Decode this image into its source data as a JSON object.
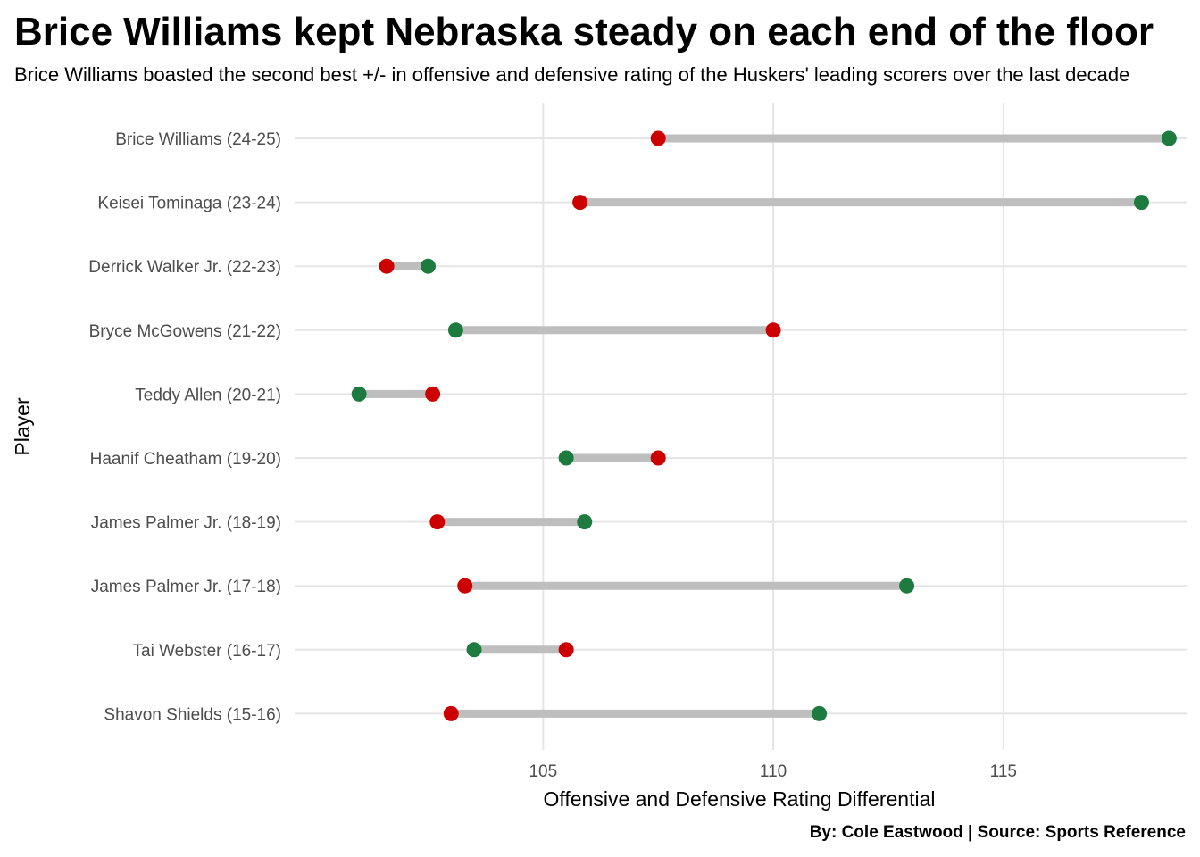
{
  "title": "Brice Williams kept Nebraska steady on each end of the floor",
  "subtitle": "Brice Williams boasted the second best +/- in offensive and defensive rating of the Huskers' leading scorers over the last decade",
  "caption": "By: Cole Eastwood | Source: Sports Reference",
  "chart_data": {
    "type": "dumbbell",
    "xlabel": "Offensive and Defensive Rating Differential",
    "ylabel": "Player",
    "xlim": [
      99.6,
      119.0
    ],
    "xticks": [
      105,
      110,
      115
    ],
    "grid": "on",
    "colors": {
      "offensive": "#1e7b3f",
      "defensive": "#cc0000",
      "connector": "#bebebe"
    },
    "series": [
      {
        "key": "offensive",
        "color": "#1e7b3f"
      },
      {
        "key": "defensive",
        "color": "#cc0000"
      }
    ],
    "players": [
      {
        "label": "Brice Williams (24-25)",
        "offensive": 118.6,
        "defensive": 107.5
      },
      {
        "label": "Keisei Tominaga (23-24)",
        "offensive": 118.0,
        "defensive": 105.8
      },
      {
        "label": "Derrick Walker Jr. (22-23)",
        "offensive": 102.5,
        "defensive": 101.6
      },
      {
        "label": "Bryce McGowens (21-22)",
        "offensive": 103.1,
        "defensive": 110.0
      },
      {
        "label": "Teddy Allen (20-21)",
        "offensive": 101.0,
        "defensive": 102.6
      },
      {
        "label": "Haanif Cheatham (19-20)",
        "offensive": 105.5,
        "defensive": 107.5
      },
      {
        "label": "James Palmer Jr. (18-19)",
        "offensive": 105.9,
        "defensive": 102.7
      },
      {
        "label": "James Palmer Jr. (17-18)",
        "offensive": 112.9,
        "defensive": 103.3
      },
      {
        "label": "Tai Webster (16-17)",
        "offensive": 103.5,
        "defensive": 105.5
      },
      {
        "label": "Shavon Shields (15-16)",
        "offensive": 111.0,
        "defensive": 103.0
      }
    ]
  }
}
